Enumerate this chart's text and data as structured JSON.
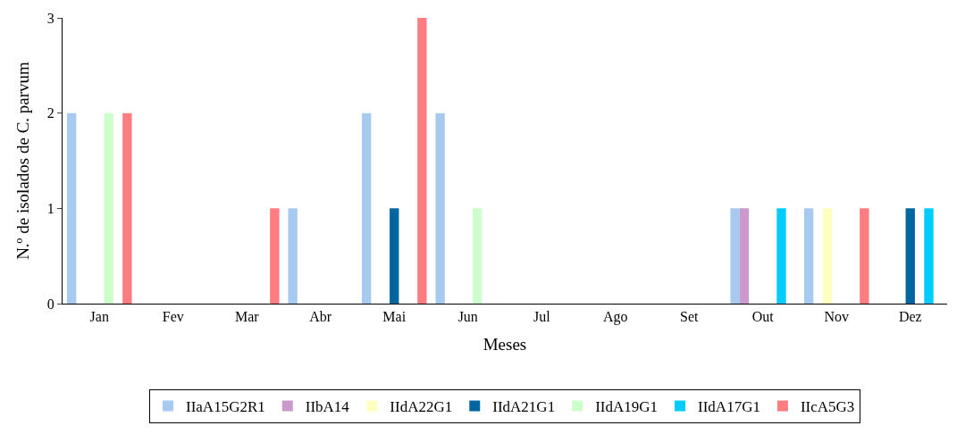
{
  "chart_data": {
    "type": "bar",
    "xlabel": "Meses",
    "ylabel": "N.º de isolados de C. parvum",
    "categories": [
      "Jan",
      "Fev",
      "Mar",
      "Abr",
      "Mai",
      "Jun",
      "Jul",
      "Ago",
      "Set",
      "Out",
      "Nov",
      "Dez"
    ],
    "series": [
      {
        "name": "IIaA15G2R1",
        "color": "#a6caf0",
        "values": [
          2,
          0,
          0,
          1,
          2,
          2,
          0,
          0,
          0,
          1,
          1,
          0
        ]
      },
      {
        "name": "IIbA14",
        "color": "#cc99cc",
        "values": [
          0,
          0,
          0,
          0,
          0,
          0,
          0,
          0,
          0,
          1,
          0,
          0
        ]
      },
      {
        "name": "IIdA22G1",
        "color": "#ffffc0",
        "values": [
          0,
          0,
          0,
          0,
          0,
          0,
          0,
          0,
          0,
          0,
          1,
          0
        ]
      },
      {
        "name": "IIdA21G1",
        "color": "#0066a0",
        "values": [
          0,
          0,
          0,
          0,
          1,
          0,
          0,
          0,
          0,
          0,
          0,
          1
        ]
      },
      {
        "name": "IIdA19G1",
        "color": "#ccffcc",
        "values": [
          2,
          0,
          0,
          0,
          0,
          1,
          0,
          0,
          0,
          0,
          0,
          0
        ]
      },
      {
        "name": "IIdA17G1",
        "color": "#00ccff",
        "values": [
          0,
          0,
          0,
          0,
          0,
          0,
          0,
          0,
          0,
          1,
          0,
          1
        ]
      },
      {
        "name": "IIcA5G3",
        "color": "#ff7c80",
        "values": [
          2,
          0,
          1,
          0,
          3,
          0,
          0,
          0,
          0,
          0,
          1,
          0
        ]
      }
    ],
    "ylim": [
      0,
      3
    ],
    "yticks": [
      0,
      1,
      2,
      3
    ],
    "grid": false,
    "legend": "bottom"
  }
}
